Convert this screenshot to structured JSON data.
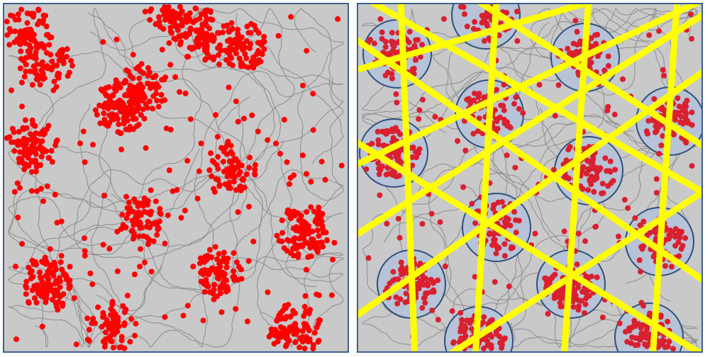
{
  "figure": {
    "background": "#c9c9c9",
    "frame_color": "#3f5f8f",
    "trajectory_color": "#8c8c8c",
    "spike_color_raw": "#ff0000",
    "spike_color_overlay": "#d9202f",
    "field_fill": "#b7c3d6",
    "field_stroke": "#2f4f7f",
    "grid_line_color": "#ffff00"
  },
  "panels": [
    {
      "id": "raw-spikes",
      "overlay": false
    },
    {
      "id": "grid-overlay",
      "overlay": true
    }
  ]
}
